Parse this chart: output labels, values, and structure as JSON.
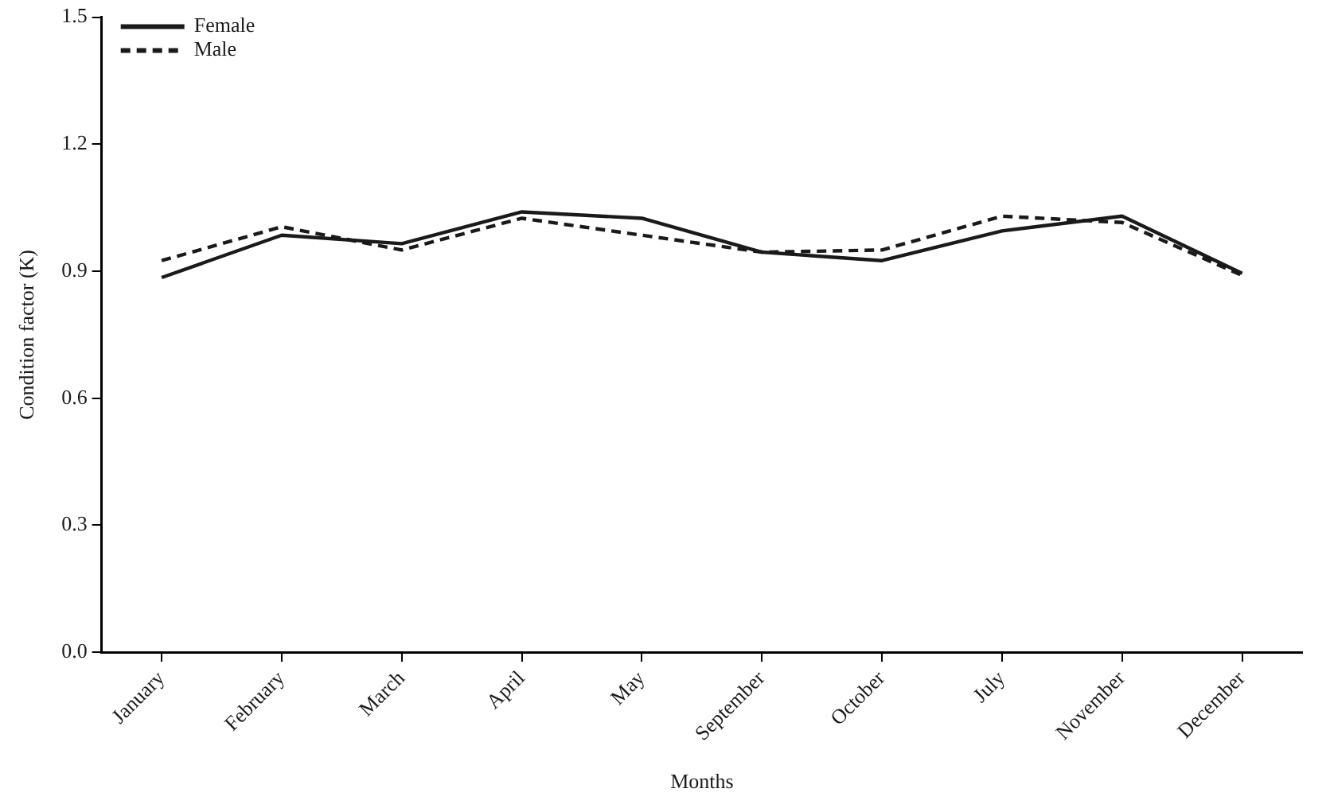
{
  "chart_data": {
    "type": "line",
    "xlabel": "Months",
    "ylabel": "Condition factor (K)",
    "categories": [
      "January",
      "February",
      "March",
      "April",
      "May",
      "September",
      "October",
      "July",
      "November",
      "December"
    ],
    "series": [
      {
        "name": "Female",
        "color": "#1a1a1a",
        "line_style": "solid",
        "values": [
          0.885,
          0.985,
          0.965,
          1.04,
          1.025,
          0.945,
          0.925,
          0.995,
          1.03,
          0.895
        ]
      },
      {
        "name": "Male",
        "color": "#1a1a1a",
        "line_style": "dashed",
        "values": [
          0.925,
          1.005,
          0.95,
          1.025,
          0.985,
          0.945,
          0.95,
          1.03,
          1.015,
          0.89
        ]
      }
    ],
    "ylim": [
      0,
      1.5
    ],
    "yticks": [
      {
        "value": 0,
        "label": "0.0"
      },
      {
        "value": 0.3,
        "label": "0.3"
      },
      {
        "value": 0.6,
        "label": "0.6"
      },
      {
        "value": 0.9,
        "label": "0.9"
      },
      {
        "value": 1.2,
        "label": "1.2"
      },
      {
        "value": 1.5,
        "label": "1.5"
      }
    ],
    "grid": false,
    "legend": "top left",
    "marker": "none"
  }
}
